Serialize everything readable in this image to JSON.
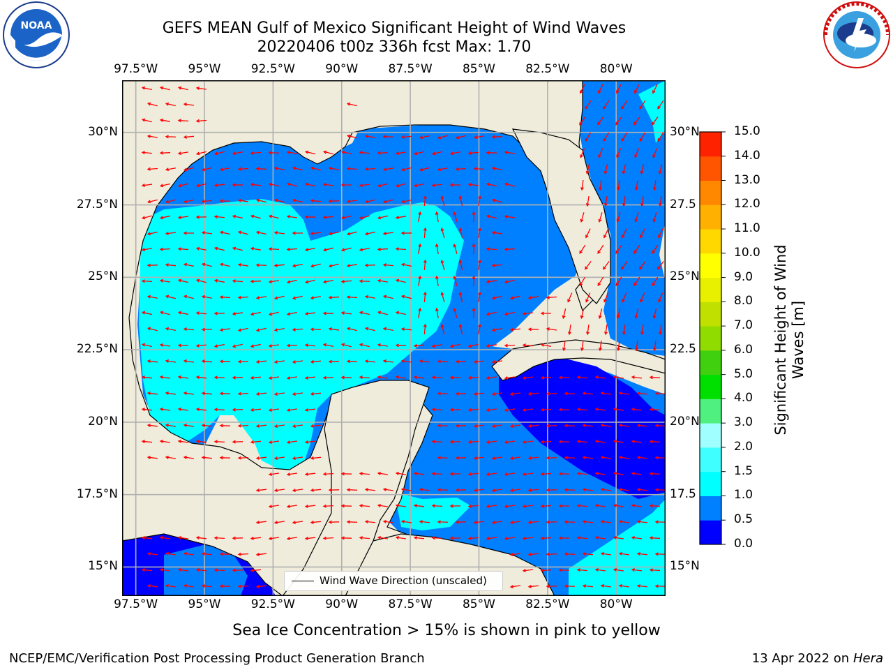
{
  "title": {
    "line1": "GEFS MEAN Gulf of Mexico Significant Height of Wind Waves",
    "line2": "20220406 t00z 336h fcst   Max: 1.70"
  },
  "logos": {
    "noaa": {
      "text": "NOAA",
      "ring_text": "NATIONAL OCEANIC AND ATMOSPHERIC ADMINISTRATION · U.S. DEPARTMENT OF COMMERCE"
    },
    "nws": {
      "ring_text": "NATIONAL WEATHER SERVICE"
    }
  },
  "map": {
    "lon_labels": [
      "97.5°W",
      "95°W",
      "92.5°W",
      "90°W",
      "87.5°W",
      "85°W",
      "82.5°W",
      "80°W"
    ],
    "lat_labels": [
      "30°N",
      "27.5°N",
      "25°N",
      "22.5°N",
      "20°N",
      "17.5°N",
      "15°N"
    ],
    "right_lat_labels": [
      "30°N",
      "27.5",
      "25°N",
      "22.5",
      "20°N",
      "17.5",
      "15°N"
    ],
    "lon_values": [
      -97.5,
      -95,
      -92.5,
      -90,
      -87.5,
      -85,
      -82.5,
      -80
    ],
    "lat_values": [
      30,
      27.5,
      25,
      22.5,
      20,
      17.5,
      15
    ],
    "extent": {
      "lon_min": -98,
      "lon_max": -78.2,
      "lat_min": 14,
      "lat_max": 31.8
    },
    "legend_label": "Wind Wave Direction (unscaled)",
    "colors": {
      "land": "#efecdc",
      "grid": "#b0b0b0",
      "arrow": "#ff0000",
      "coast": "#000000"
    }
  },
  "colorbar": {
    "title": "Significant Height of Wind Waves [m]",
    "title_line1": "Significant Height of Wind",
    "title_line2": "Waves [m]",
    "levels": [
      "0.0",
      "0.5",
      "1.0",
      "1.5",
      "2.0",
      "3.0",
      "4.0",
      "5.0",
      "6.0",
      "7.0",
      "8.0",
      "9.0",
      "10.0",
      "11.0",
      "12.0",
      "13.0",
      "14.0",
      "15.0"
    ],
    "colors": [
      "#0000ff",
      "#0080ff",
      "#00ffff",
      "#40ffff",
      "#a0ffff",
      "#50f080",
      "#00e000",
      "#40d010",
      "#90dc00",
      "#c0e000",
      "#e8f000",
      "#ffff00",
      "#ffd800",
      "#ffb000",
      "#ff8800",
      "#ff5500",
      "#ff2200"
    ]
  },
  "subtitle": "Sea Ice Concentration > 15% is shown in pink to yellow",
  "footer": {
    "left": "NCEP/EMC/Verification Post Processing Product Generation Branch",
    "right_date": "13 Apr 2022 on",
    "right_host": "Hera"
  }
}
